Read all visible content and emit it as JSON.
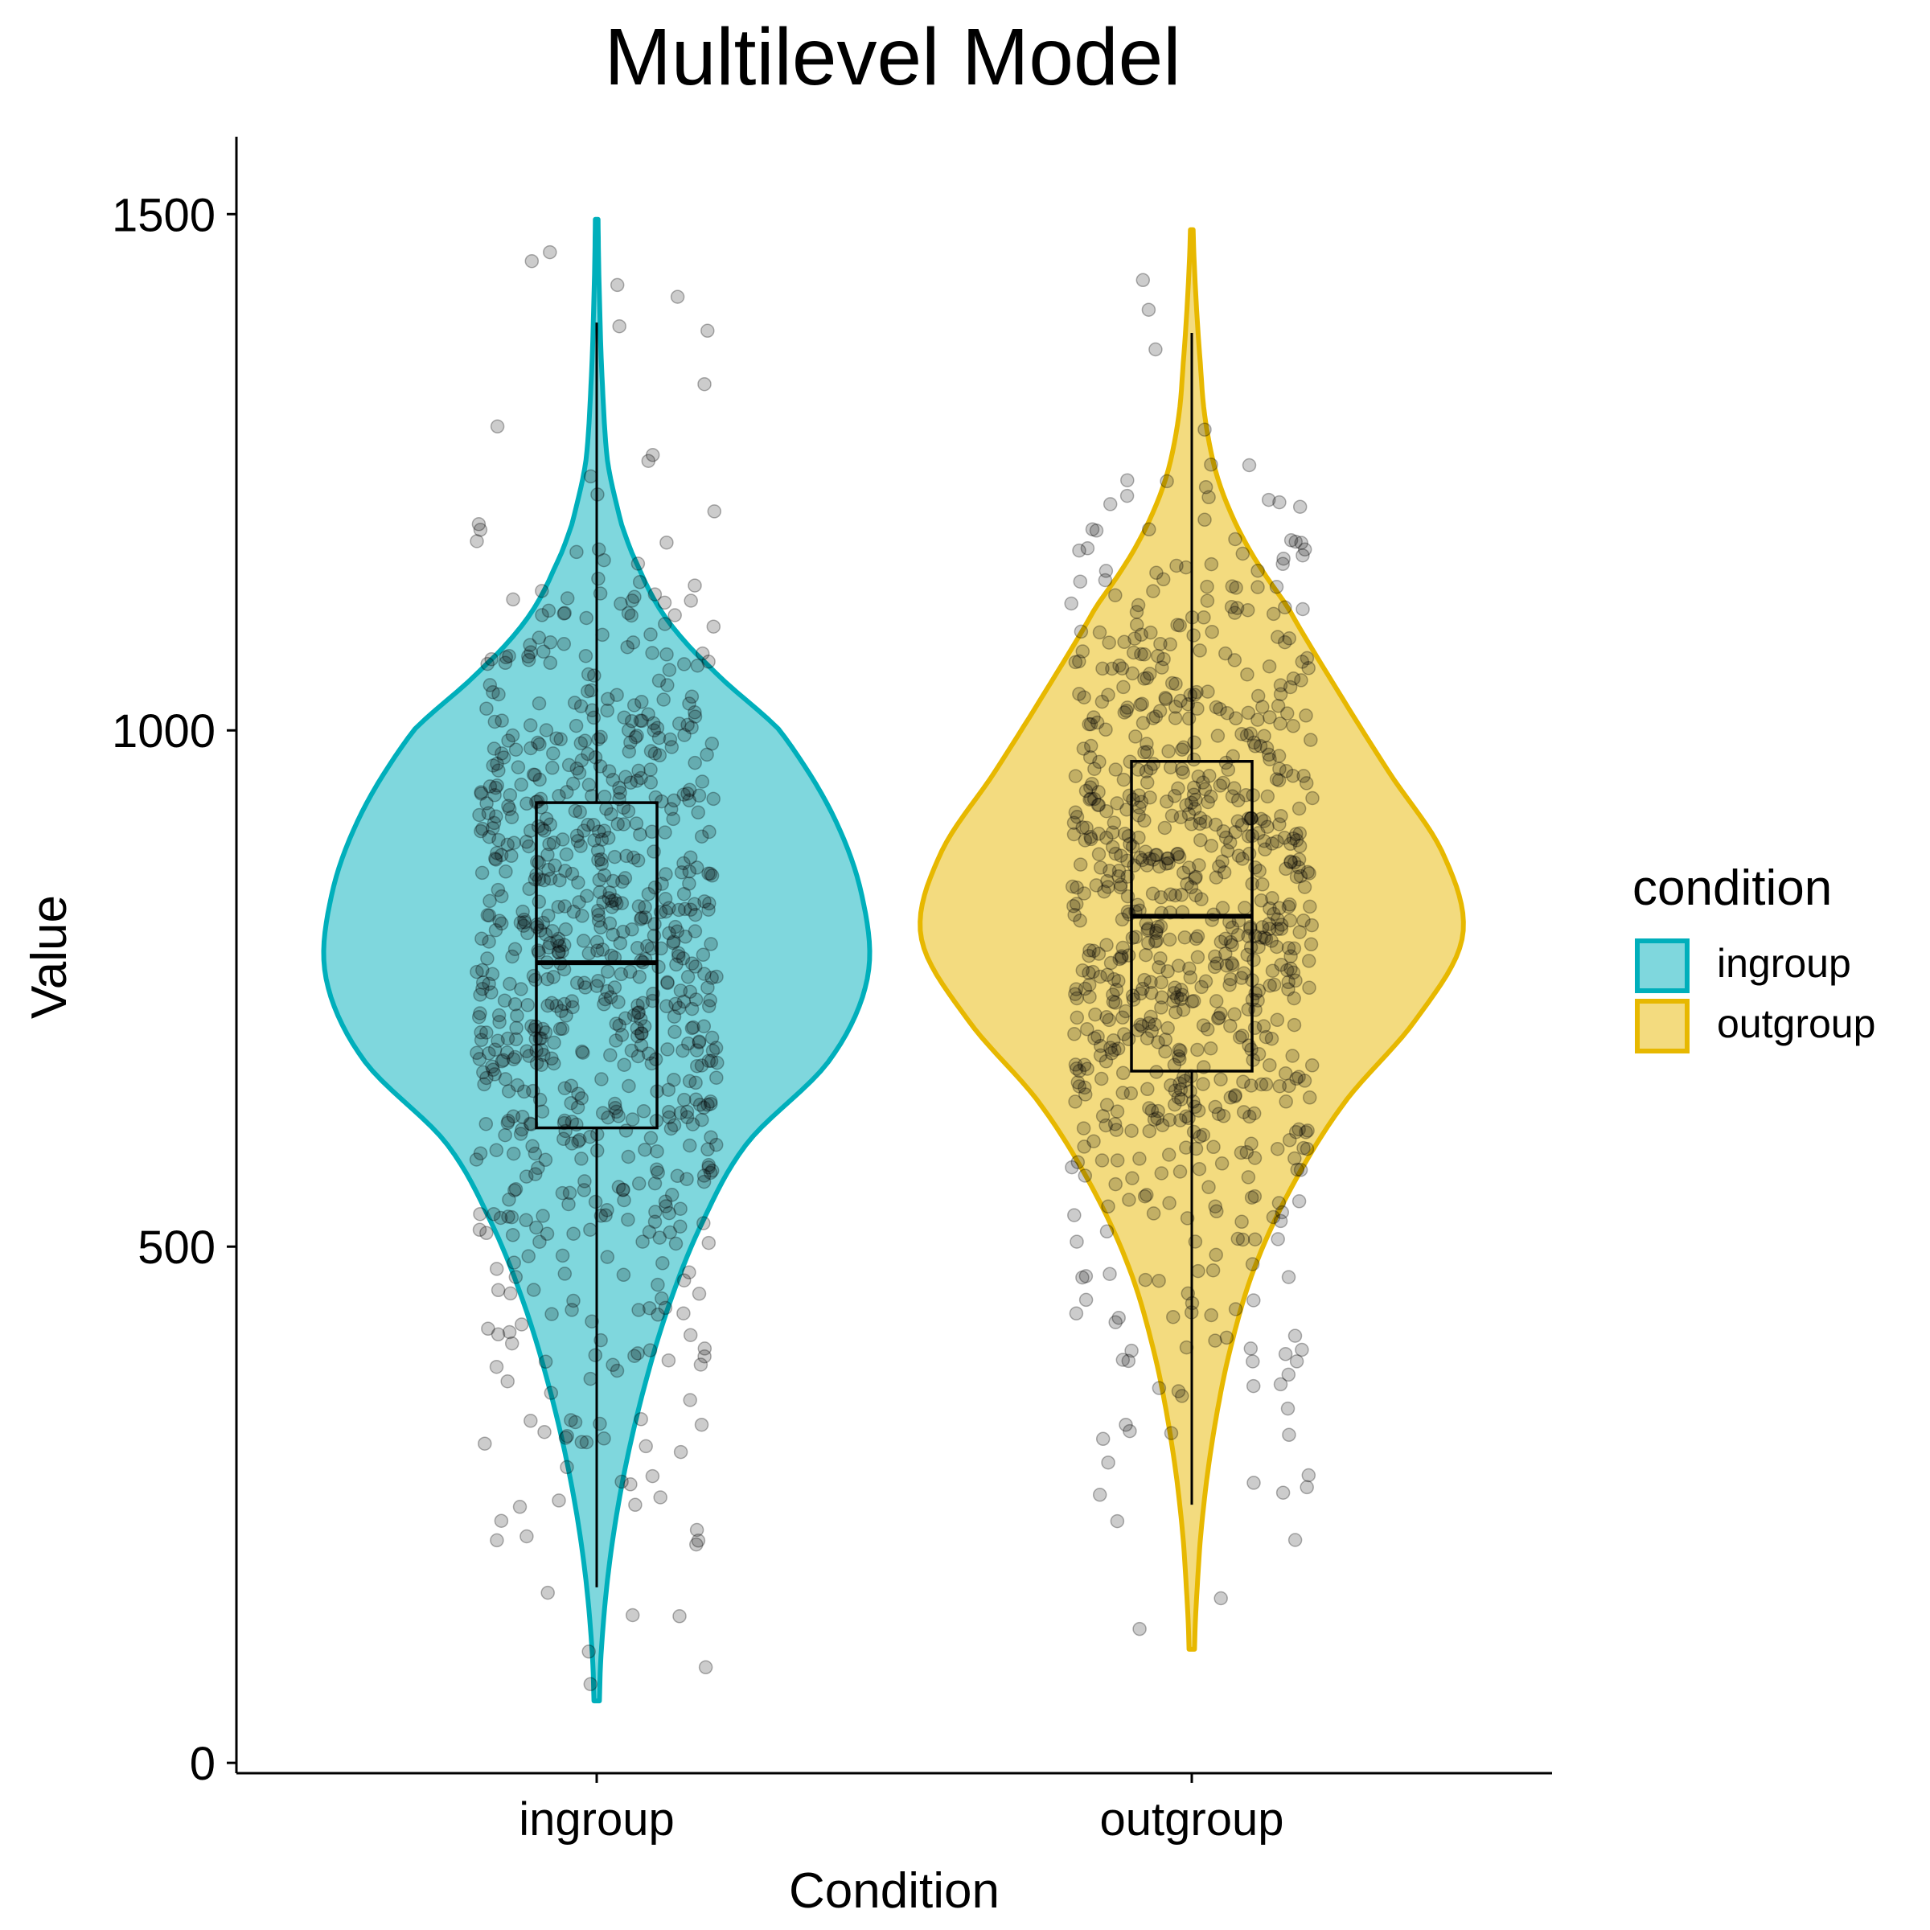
{
  "chart_data": {
    "type": "violin",
    "title": "Multilevel Model",
    "xlabel": "Condition",
    "ylabel": "Value",
    "ylim": [
      -10,
      1575
    ],
    "yticks": [
      0,
      500,
      1000,
      1500
    ],
    "categories": [
      "ingroup",
      "outgroup"
    ],
    "legend": {
      "title": "condition",
      "position": "right",
      "entries": [
        "ingroup",
        "outgroup"
      ]
    },
    "series": [
      {
        "name": "ingroup",
        "color": "#00AFBB",
        "fill": "#7FD7DD",
        "min": 60,
        "max": 1495,
        "box": {
          "lower_whisker": 170,
          "q1": 615,
          "median": 775,
          "q3": 930,
          "upper_whisker": 1395
        },
        "density": [
          [
            60,
            0.01
          ],
          [
            120,
            0.02
          ],
          [
            200,
            0.05
          ],
          [
            280,
            0.1
          ],
          [
            360,
            0.17
          ],
          [
            440,
            0.26
          ],
          [
            520,
            0.38
          ],
          [
            600,
            0.55
          ],
          [
            680,
            0.85
          ],
          [
            760,
            0.99
          ],
          [
            840,
            0.97
          ],
          [
            920,
            0.86
          ],
          [
            1000,
            0.67
          ],
          [
            1060,
            0.42
          ],
          [
            1110,
            0.25
          ],
          [
            1160,
            0.15
          ],
          [
            1200,
            0.09
          ],
          [
            1260,
            0.04
          ],
          [
            1340,
            0.02
          ],
          [
            1420,
            0.01
          ],
          [
            1495,
            0.005
          ]
        ]
      },
      {
        "name": "outgroup",
        "color": "#E7B800",
        "fill": "#F3DB7F",
        "min": 110,
        "max": 1485,
        "box": {
          "lower_whisker": 250,
          "q1": 670,
          "median": 820,
          "q3": 970,
          "upper_whisker": 1385
        },
        "density": [
          [
            110,
            0.01
          ],
          [
            170,
            0.02
          ],
          [
            240,
            0.04
          ],
          [
            320,
            0.08
          ],
          [
            400,
            0.14
          ],
          [
            480,
            0.23
          ],
          [
            560,
            0.37
          ],
          [
            640,
            0.56
          ],
          [
            720,
            0.82
          ],
          [
            800,
            0.99
          ],
          [
            880,
            0.92
          ],
          [
            960,
            0.72
          ],
          [
            1040,
            0.53
          ],
          [
            1120,
            0.35
          ],
          [
            1180,
            0.2
          ],
          [
            1240,
            0.1
          ],
          [
            1300,
            0.05
          ],
          [
            1360,
            0.03
          ],
          [
            1420,
            0.015
          ],
          [
            1485,
            0.005
          ]
        ]
      }
    ],
    "points_per_group": 800,
    "point_color": "#000000",
    "point_opacity": 0.2
  }
}
